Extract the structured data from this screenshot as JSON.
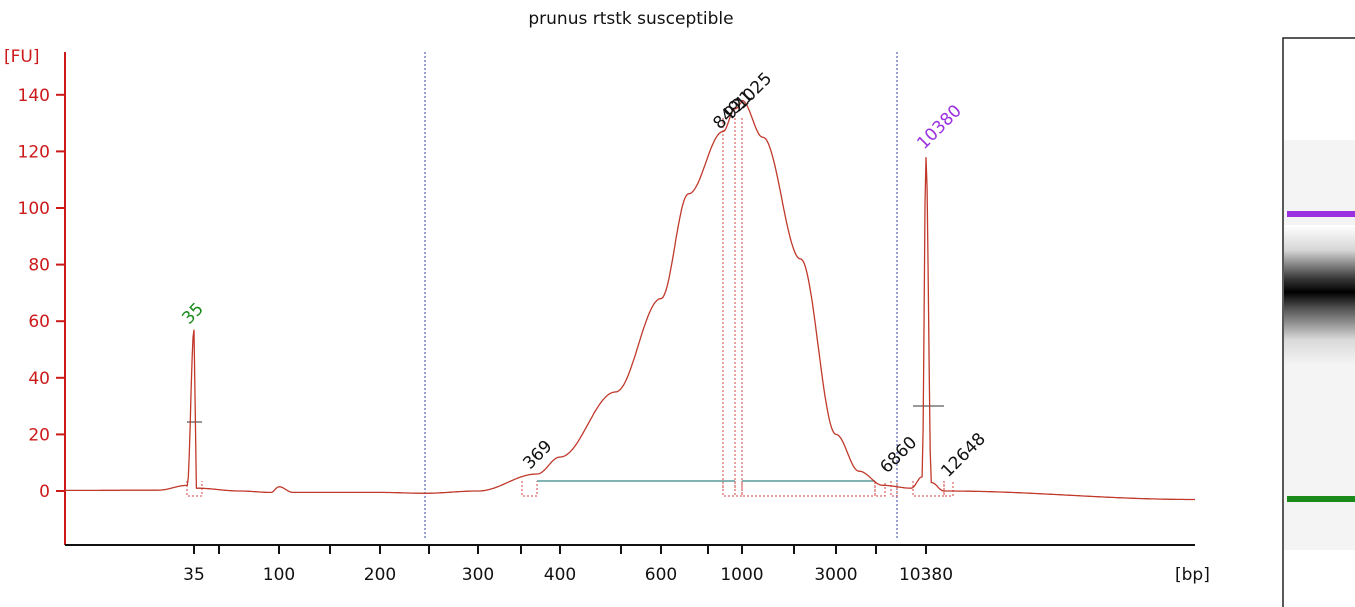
{
  "chart_data": {
    "type": "line",
    "title": "prunus rtstk susceptible",
    "ylabel": "[FU]",
    "xlabel": "[bp]",
    "ylim": [
      -18,
      152
    ],
    "y_ticks": [
      0,
      20,
      40,
      60,
      80,
      100,
      120,
      140
    ],
    "x_scale": "migration-time (non-linear bp)",
    "x_ticks": [
      "35",
      "100",
      "200",
      "300",
      "400",
      "600",
      "1000",
      "3000",
      "10380"
    ],
    "series": [
      {
        "color": "#c0392b",
        "profile": [
          {
            "bp": 20,
            "fu": 0.2
          },
          {
            "bp": 30,
            "fu": 0.3
          },
          {
            "bp": 34,
            "fu": 2
          },
          {
            "bp": 35,
            "fu": 57
          },
          {
            "bp": 36,
            "fu": 1
          },
          {
            "bp": 60,
            "fu": 0
          },
          {
            "bp": 90,
            "fu": -0.5
          },
          {
            "bp": 100,
            "fu": 1.5
          },
          {
            "bp": 110,
            "fu": -0.5
          },
          {
            "bp": 200,
            "fu": -0.5
          },
          {
            "bp": 250,
            "fu": -0.8
          },
          {
            "bp": 300,
            "fu": 0
          },
          {
            "bp": 369,
            "fu": 6
          },
          {
            "bp": 400,
            "fu": 12
          },
          {
            "bp": 500,
            "fu": 35
          },
          {
            "bp": 600,
            "fu": 68
          },
          {
            "bp": 700,
            "fu": 105
          },
          {
            "bp": 849,
            "fu": 127
          },
          {
            "bp": 921,
            "fu": 135
          },
          {
            "bp": 1025,
            "fu": 138
          },
          {
            "bp": 1300,
            "fu": 125
          },
          {
            "bp": 2000,
            "fu": 82
          },
          {
            "bp": 3000,
            "fu": 20
          },
          {
            "bp": 4500,
            "fu": 7
          },
          {
            "bp": 6860,
            "fu": 2
          },
          {
            "bp": 9000,
            "fu": 1
          },
          {
            "bp": 10000,
            "fu": 5
          },
          {
            "bp": 10380,
            "fu": 118
          },
          {
            "bp": 11000,
            "fu": 3
          },
          {
            "bp": 12648,
            "fu": 0
          },
          {
            "bp": 20000,
            "fu": -3
          }
        ]
      }
    ],
    "peak_labels": [
      {
        "text": "35",
        "bp": 35,
        "fu": 57,
        "color": "#1a8a1a"
      },
      {
        "text": "369",
        "bp": 369,
        "fu": 6,
        "color": "#111111"
      },
      {
        "text": "849",
        "bp": 849,
        "fu": 127,
        "color": "#111111"
      },
      {
        "text": "921",
        "bp": 921,
        "fu": 135,
        "color": "#111111"
      },
      {
        "text": "1025",
        "bp": 1025,
        "fu": 138,
        "color": "#111111"
      },
      {
        "text": "6860",
        "bp": 6860,
        "fu": 2,
        "color": "#111111"
      },
      {
        "text": "12648",
        "bp": 12648,
        "fu": 0,
        "color": "#111111"
      },
      {
        "text": "10380",
        "bp": 10380,
        "fu": 118,
        "color": "#9b30e0"
      }
    ],
    "marker_colors": {
      "lower": "#1a8a1a",
      "upper": "#9b30e0"
    }
  }
}
